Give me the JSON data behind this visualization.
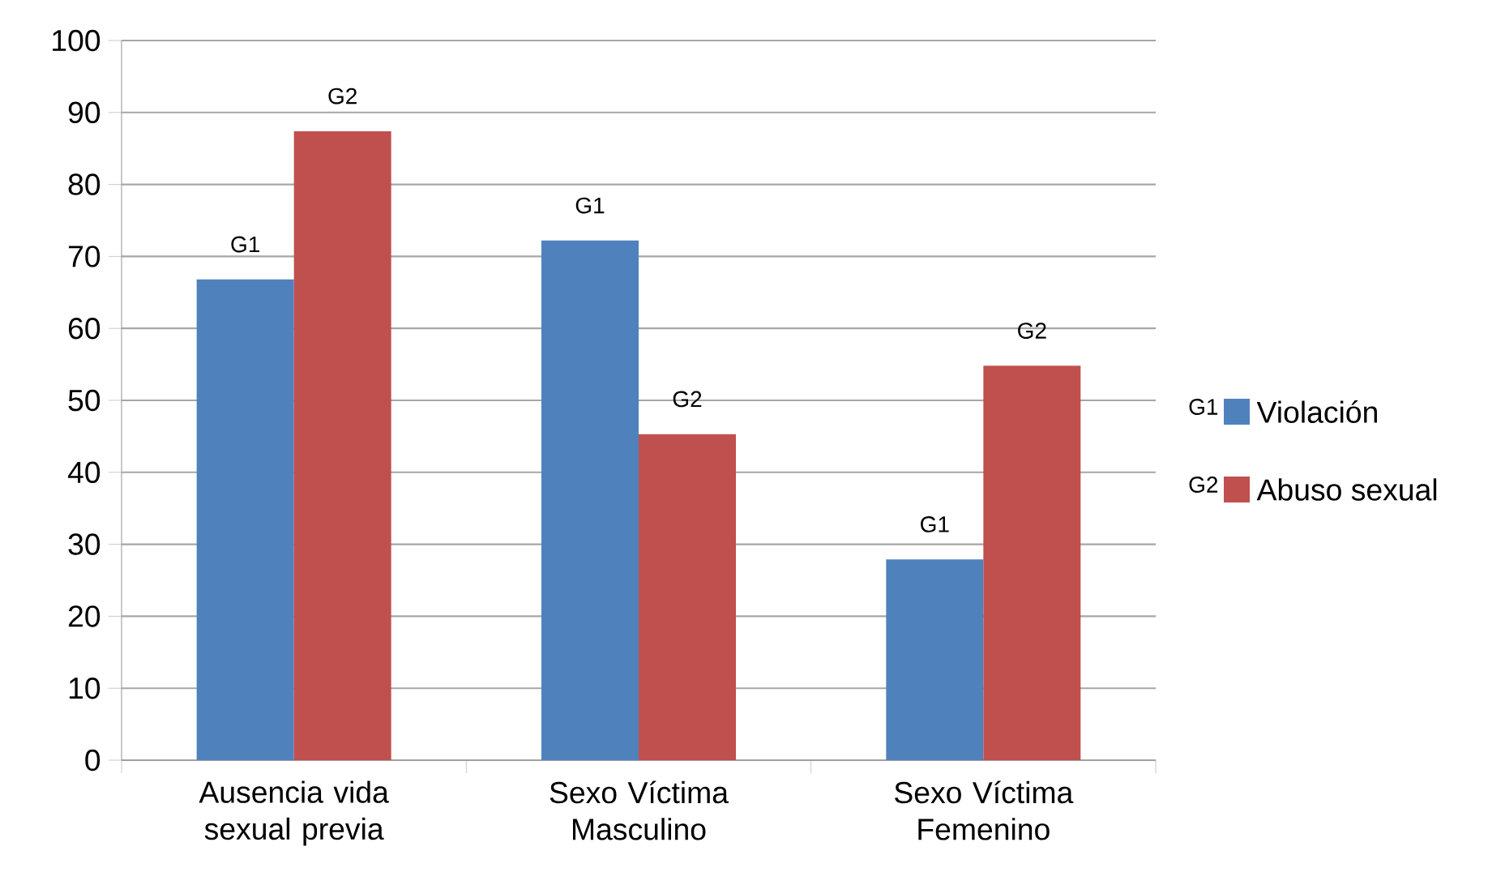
{
  "chart_data": {
    "type": "bar",
    "categories": [
      "Ausencia vida sexual previa",
      "Sexo Víctima Masculino",
      "Sexo Víctima Femenino"
    ],
    "series": [
      {
        "name": "Violación",
        "color": "#4f81bd",
        "values": [
          66.8,
          72.2,
          27.9
        ]
      },
      {
        "name": "Abuso sexual",
        "color": "#c0504d",
        "values": [
          87.4,
          45.3,
          54.8
        ]
      }
    ],
    "ylim": [
      0,
      100
    ],
    "yticks": [
      0,
      10,
      20,
      30,
      40,
      50,
      60,
      70,
      80,
      90,
      100
    ],
    "grid": "y",
    "legend": "right",
    "annotations": [
      {
        "text": "G1",
        "x": "Ausencia vida sexual previa",
        "y": 66.8
      },
      {
        "text": "G2",
        "x": "Ausencia vida sexual previa",
        "y": 87.4
      },
      {
        "text": "G1",
        "x": "Sexo Víctima Masculino",
        "y": 72.2
      },
      {
        "text": "G2",
        "x": "Sexo Víctima Masculino",
        "y": 45.3
      },
      {
        "text": "G1",
        "x": "Sexo Víctima Femenino",
        "y": 27.9
      },
      {
        "text": "G2",
        "x": "Sexo Víctima Femenino",
        "y": 54.8
      },
      "G1",
      "G2"
    ]
  }
}
